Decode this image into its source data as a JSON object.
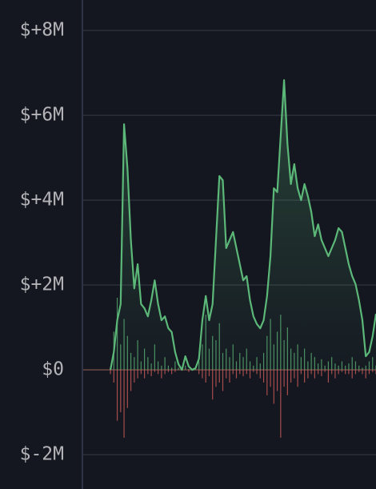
{
  "chart_data": {
    "type": "line",
    "ylim": [
      -2.81,
      8.72
    ],
    "yticks": [
      {
        "value": 8,
        "label": "$+8M"
      },
      {
        "value": 6,
        "label": "$+6M"
      },
      {
        "value": 4,
        "label": "$+4M"
      },
      {
        "value": 2,
        "label": "$+2M"
      },
      {
        "value": 0,
        "label": "$0"
      },
      {
        "value": -2,
        "label": "$-2M"
      }
    ],
    "grid": true,
    "series": [
      {
        "type": "line",
        "color": "#5cb878",
        "values": [
          null,
          null,
          null,
          null,
          null,
          null,
          null,
          null,
          0,
          0.42,
          1.17,
          1.55,
          5.79,
          4.75,
          3.06,
          1.92,
          2.49,
          1.55,
          1.45,
          1.26,
          1.64,
          2.11,
          1.55,
          1.17,
          1.26,
          0.98,
          0.89,
          0.42,
          0.13,
          0,
          0.32,
          0.08,
          0,
          0.04,
          0.26,
          1.17,
          1.74,
          1.17,
          1.55,
          3.06,
          4.57,
          4.47,
          2.87,
          3.06,
          3.25,
          2.87,
          2.49,
          2.11,
          2.21,
          1.64,
          1.26,
          1.08,
          0.98,
          1.17,
          1.74,
          2.68,
          4.28,
          4.19,
          5.51,
          6.83,
          5.32,
          4.38,
          4.85,
          4.28,
          4.0,
          4.38,
          4.09,
          3.72,
          3.15,
          3.43,
          3.06,
          2.87,
          2.68,
          2.87,
          3.06,
          3.34,
          3.25,
          2.87,
          2.49,
          2.21,
          2.02,
          1.64,
          1.17,
          0.32,
          0.42,
          0.79,
          1.32
        ]
      },
      {
        "type": "bar",
        "color": "#5cb878",
        "values": [
          null,
          null,
          null,
          null,
          null,
          null,
          null,
          null,
          0.05,
          0.9,
          1.7,
          0.6,
          1.2,
          0.8,
          0.4,
          0.3,
          0.7,
          0.2,
          0.5,
          0.3,
          0.15,
          0.6,
          0.2,
          0.1,
          0.3,
          0.1,
          0.05,
          0.2,
          0.05,
          0,
          0.1,
          0.02,
          0,
          0.05,
          0.2,
          0.6,
          1.3,
          0.5,
          0.8,
          0.7,
          1.1,
          0.4,
          0.5,
          0.3,
          0.6,
          0.2,
          0.4,
          0.3,
          0.5,
          0.2,
          0.1,
          0.3,
          0.15,
          0.4,
          0.8,
          1.2,
          0.6,
          0.9,
          1.3,
          0.7,
          1.0,
          0.5,
          0.4,
          0.6,
          0.3,
          0.5,
          0.2,
          0.4,
          0.3,
          0.15,
          0.25,
          0.1,
          0.2,
          0.3,
          0.15,
          0.1,
          0.2,
          0.1,
          0.15,
          0.3,
          0.2,
          0.1,
          0.05,
          0.1,
          0.2,
          0.3,
          0.1
        ]
      },
      {
        "type": "bar",
        "color": "#d9605d",
        "values": [
          null,
          null,
          null,
          null,
          null,
          null,
          null,
          null,
          -0.1,
          -0.3,
          -1.2,
          -1.0,
          -1.6,
          -0.9,
          -0.5,
          -0.3,
          -0.2,
          -0.1,
          -0.2,
          -0.1,
          -0.15,
          -0.05,
          -0.1,
          -0.2,
          -0.1,
          -0.05,
          -0.1,
          -0.05,
          0,
          -0.02,
          0,
          -0.05,
          0,
          0,
          -0.1,
          -0.2,
          -0.3,
          -0.15,
          -0.7,
          -0.4,
          -0.3,
          -0.5,
          -0.2,
          -0.3,
          -0.1,
          -0.2,
          -0.1,
          -0.15,
          -0.1,
          -0.2,
          -0.05,
          -0.1,
          -0.2,
          -0.3,
          -0.6,
          -0.4,
          -0.8,
          -0.5,
          -1.6,
          -0.4,
          -0.6,
          -0.3,
          -0.2,
          -0.4,
          -0.1,
          -0.3,
          -0.2,
          -0.1,
          -0.2,
          -0.1,
          -0.15,
          -0.05,
          -0.3,
          -0.1,
          -0.2,
          -0.1,
          -0.05,
          -0.1,
          -0.1,
          -0.2,
          -0.1,
          -0.05,
          -0.1,
          -0.2,
          -0.1,
          -0.05,
          -0.1
        ]
      }
    ]
  }
}
